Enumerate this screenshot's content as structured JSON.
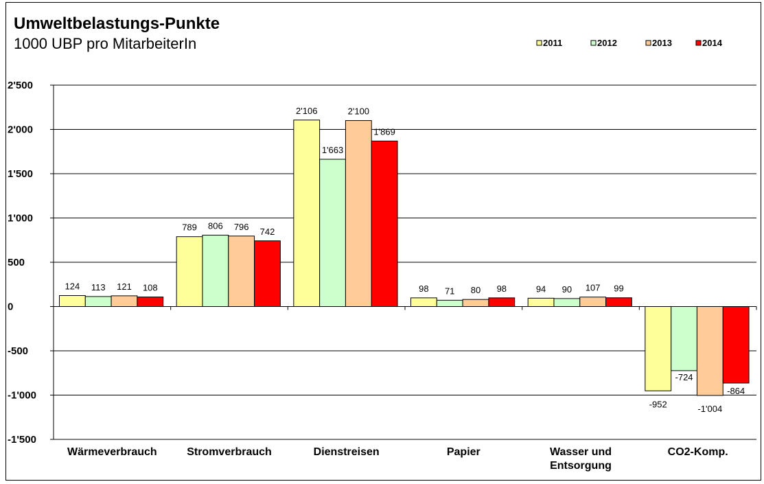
{
  "chart_data": {
    "type": "bar",
    "title": "Umweltbelastungs-Punkte",
    "subtitle": "1000 UBP pro MitarbeiterIn",
    "categories": [
      [
        "Wärmeverbrauch"
      ],
      [
        "Stromverbrauch"
      ],
      [
        "Dienstreisen"
      ],
      [
        "Papier"
      ],
      [
        "Wasser und",
        "Entsorgung"
      ],
      [
        "CO2-Komp."
      ]
    ],
    "series": [
      {
        "name": "2011",
        "color": "#FFFF99",
        "values": [
          124,
          789,
          2106,
          98,
          94,
          -952
        ],
        "labels": [
          "124",
          "789",
          "2'106",
          "98",
          "94",
          "-952"
        ]
      },
      {
        "name": "2012",
        "color": "#CCFFCC",
        "values": [
          113,
          806,
          1663,
          71,
          90,
          -724
        ],
        "labels": [
          "113",
          "806",
          "1'663",
          "71",
          "90",
          "-724"
        ]
      },
      {
        "name": "2013",
        "color": "#FFCC99",
        "values": [
          121,
          796,
          2100,
          80,
          107,
          -1004
        ],
        "labels": [
          "121",
          "796",
          "2'100",
          "80",
          "107",
          "-1'004"
        ]
      },
      {
        "name": "2014",
        "color": "#FF0000",
        "values": [
          108,
          742,
          1869,
          98,
          99,
          -864
        ],
        "labels": [
          "108",
          "742",
          "1'869",
          "98",
          "99",
          "-864"
        ]
      }
    ],
    "ylim": [
      -1500,
      2500
    ],
    "yticks": [
      -1500,
      -1000,
      -500,
      0,
      500,
      1000,
      1500,
      2000,
      2500
    ],
    "ytick_labels": [
      "-1'500",
      "-1'000",
      "-500",
      "0",
      "500",
      "1'000",
      "1'500",
      "2'000",
      "2'500"
    ],
    "grid": true,
    "legend_position": "top-right"
  }
}
